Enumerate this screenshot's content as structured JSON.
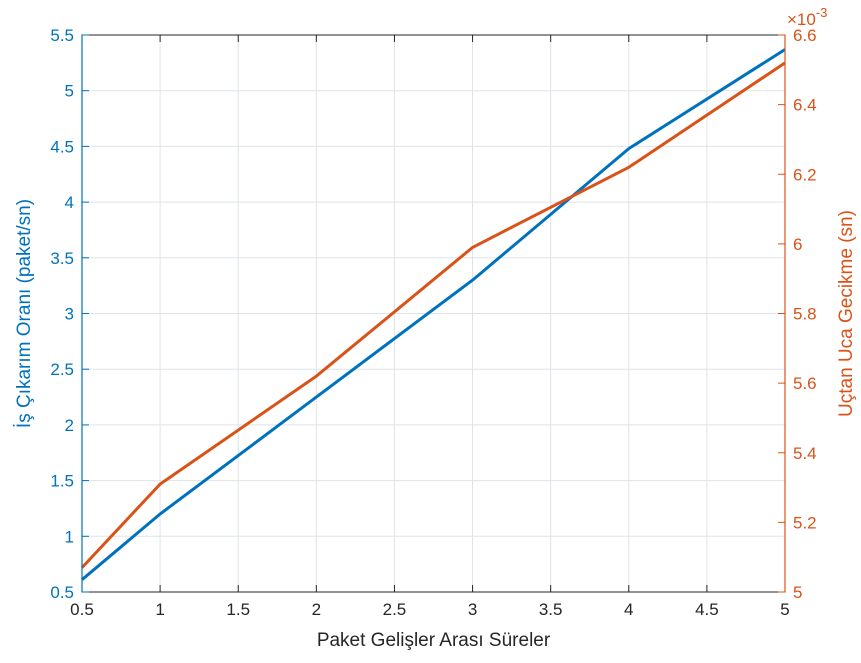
{
  "chart_data": {
    "type": "line",
    "xlabel": "Paket Gelişler Arası Süreler",
    "x": [
      0.5,
      1,
      2,
      3,
      4,
      5
    ],
    "xlim": [
      0.5,
      5
    ],
    "xticks": [
      "0.5",
      "1",
      "1.5",
      "2",
      "2.5",
      "3",
      "3.5",
      "4",
      "4.5",
      "5"
    ],
    "grid": true,
    "left_axis": {
      "label": "İş Çıkarım Oranı (paket/sn)",
      "color": "#0072BD",
      "ylim": [
        0.5,
        5.5
      ],
      "ticks": [
        "0.5",
        "1",
        "1.5",
        "2",
        "2.5",
        "3",
        "3.5",
        "4",
        "4.5",
        "5",
        "5.5"
      ]
    },
    "right_axis": {
      "label": "Uçtan Uca Gecikme (sn)",
      "color": "#D95319",
      "ylim": [
        5.0,
        6.6
      ],
      "exponent_label": "×10",
      "exponent_power": "-3",
      "ticks": [
        "5",
        "5.2",
        "5.4",
        "5.6",
        "5.8",
        "6",
        "6.2",
        "6.4",
        "6.6"
      ]
    },
    "series": [
      {
        "axis": "left",
        "color": "#0072BD",
        "values": [
          0.61,
          1.2,
          2.25,
          3.3,
          4.48,
          5.37
        ]
      },
      {
        "axis": "right",
        "color": "#D95319",
        "values": [
          5.07,
          5.31,
          5.62,
          5.99,
          6.22,
          6.52
        ]
      }
    ]
  }
}
